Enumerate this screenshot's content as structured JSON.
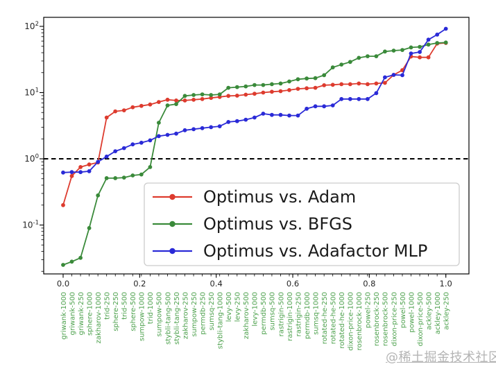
{
  "watermark": "@稀土掘金技术社区",
  "colors": {
    "adam_red": "#dd3b2e",
    "bfgs_green": "#3a8a3a",
    "adafactor_blue": "#2a2ad7",
    "reference_line": "#000000",
    "category_label_green": "#4da14d",
    "axis_tick_label": "#262626",
    "legend_border": "#cccccc",
    "legend_text": "#1a1a1a",
    "spine": "#000000",
    "watermark_gray": "#b4b4b4"
  },
  "chart_data": {
    "type": "line",
    "title": "",
    "xlabel": "",
    "ylabel": "",
    "y_scale": "log",
    "ylim": [
      0.018,
      137
    ],
    "grid": "off",
    "reference_line": {
      "y": 1,
      "style": "dashed",
      "color": "#000000"
    },
    "x_tick_labels": [
      "0.0",
      "0.2",
      "0.4",
      "0.6",
      "0.8",
      "1.0"
    ],
    "x_tick_values": [
      0,
      0.2,
      0.4,
      0.6,
      0.8,
      1.0
    ],
    "y_tick_exponents": [
      2,
      1,
      0,
      -1
    ],
    "legend_position": "inside lower right",
    "categories": [
      "griwank-1000",
      "griwank-500",
      "griwank-250",
      "sphere-1000",
      "zakharov-1000",
      "trid-250",
      "sphere-250",
      "trid-500",
      "sphere-500",
      "sumpow-1000",
      "trid-1000",
      "sumpow-500",
      "stybli-tang-500",
      "stybli-tang-250",
      "zakharov-250",
      "sumpow-250",
      "permdb-250",
      "sumsq-250",
      "stybli-tang-1000",
      "levy-500",
      "levy-250",
      "zakharov-500",
      "levy-1000",
      "permdb-500",
      "sumsq-500",
      "rastrigin-500",
      "rastrigin-1000",
      "rastrigin-250",
      "permdb-1000",
      "sumsq-1000",
      "rotated-he-250",
      "rotated-he-500",
      "rotated-he-1000",
      "dixon-price-1000",
      "rosenbrock-1000",
      "powel-250",
      "rosenbrock-250",
      "rosenbrock-500",
      "dixon-price-250",
      "powel-500",
      "powel-1000",
      "dixon-price-500",
      "ackley-500",
      "ackley-1000",
      "ackley-250"
    ],
    "series": [
      {
        "name": "Optimus vs. Adam",
        "color": "#dd3b2e",
        "values": [
          0.2,
          0.55,
          0.75,
          0.82,
          0.88,
          4.2,
          5.2,
          5.4,
          6.0,
          6.3,
          6.6,
          7.2,
          7.8,
          7.6,
          7.6,
          7.8,
          8.0,
          8.3,
          8.6,
          8.9,
          9.0,
          9.3,
          9.6,
          10.0,
          10.3,
          10.5,
          10.9,
          11.4,
          11.6,
          11.8,
          12.9,
          13.1,
          13.4,
          13.4,
          13.7,
          13.4,
          13.7,
          14.0,
          18.5,
          21.8,
          35,
          34,
          34,
          55,
          56
        ]
      },
      {
        "name": "Optimus vs. BFGS",
        "color": "#3a8a3a",
        "values": [
          0.025,
          0.028,
          0.032,
          0.09,
          0.28,
          0.51,
          0.51,
          0.52,
          0.56,
          0.58,
          0.75,
          3.5,
          6.4,
          6.7,
          8.9,
          9.2,
          9.4,
          9.2,
          9.4,
          11.8,
          12.1,
          12.4,
          13.0,
          13.0,
          13.4,
          13.7,
          14.7,
          15.9,
          16.3,
          16.5,
          18.3,
          24,
          26.5,
          29,
          33.5,
          35.4,
          35.4,
          41.7,
          43,
          44,
          48,
          49,
          53,
          56,
          57
        ]
      },
      {
        "name": "Optimus vs. Adafactor MLP",
        "color": "#2a2ad7",
        "values": [
          0.62,
          0.63,
          0.63,
          0.65,
          0.9,
          1.08,
          1.3,
          1.45,
          1.65,
          1.75,
          1.9,
          2.2,
          2.3,
          2.4,
          2.7,
          2.8,
          2.9,
          3.0,
          3.1,
          3.6,
          3.7,
          3.9,
          4.2,
          4.8,
          4.6,
          4.6,
          4.5,
          4.5,
          5.7,
          6.2,
          6.2,
          6.4,
          8.0,
          8.0,
          8.0,
          8.0,
          9.8,
          17.0,
          18.5,
          18.3,
          39,
          41,
          63,
          75,
          92
        ]
      }
    ]
  }
}
